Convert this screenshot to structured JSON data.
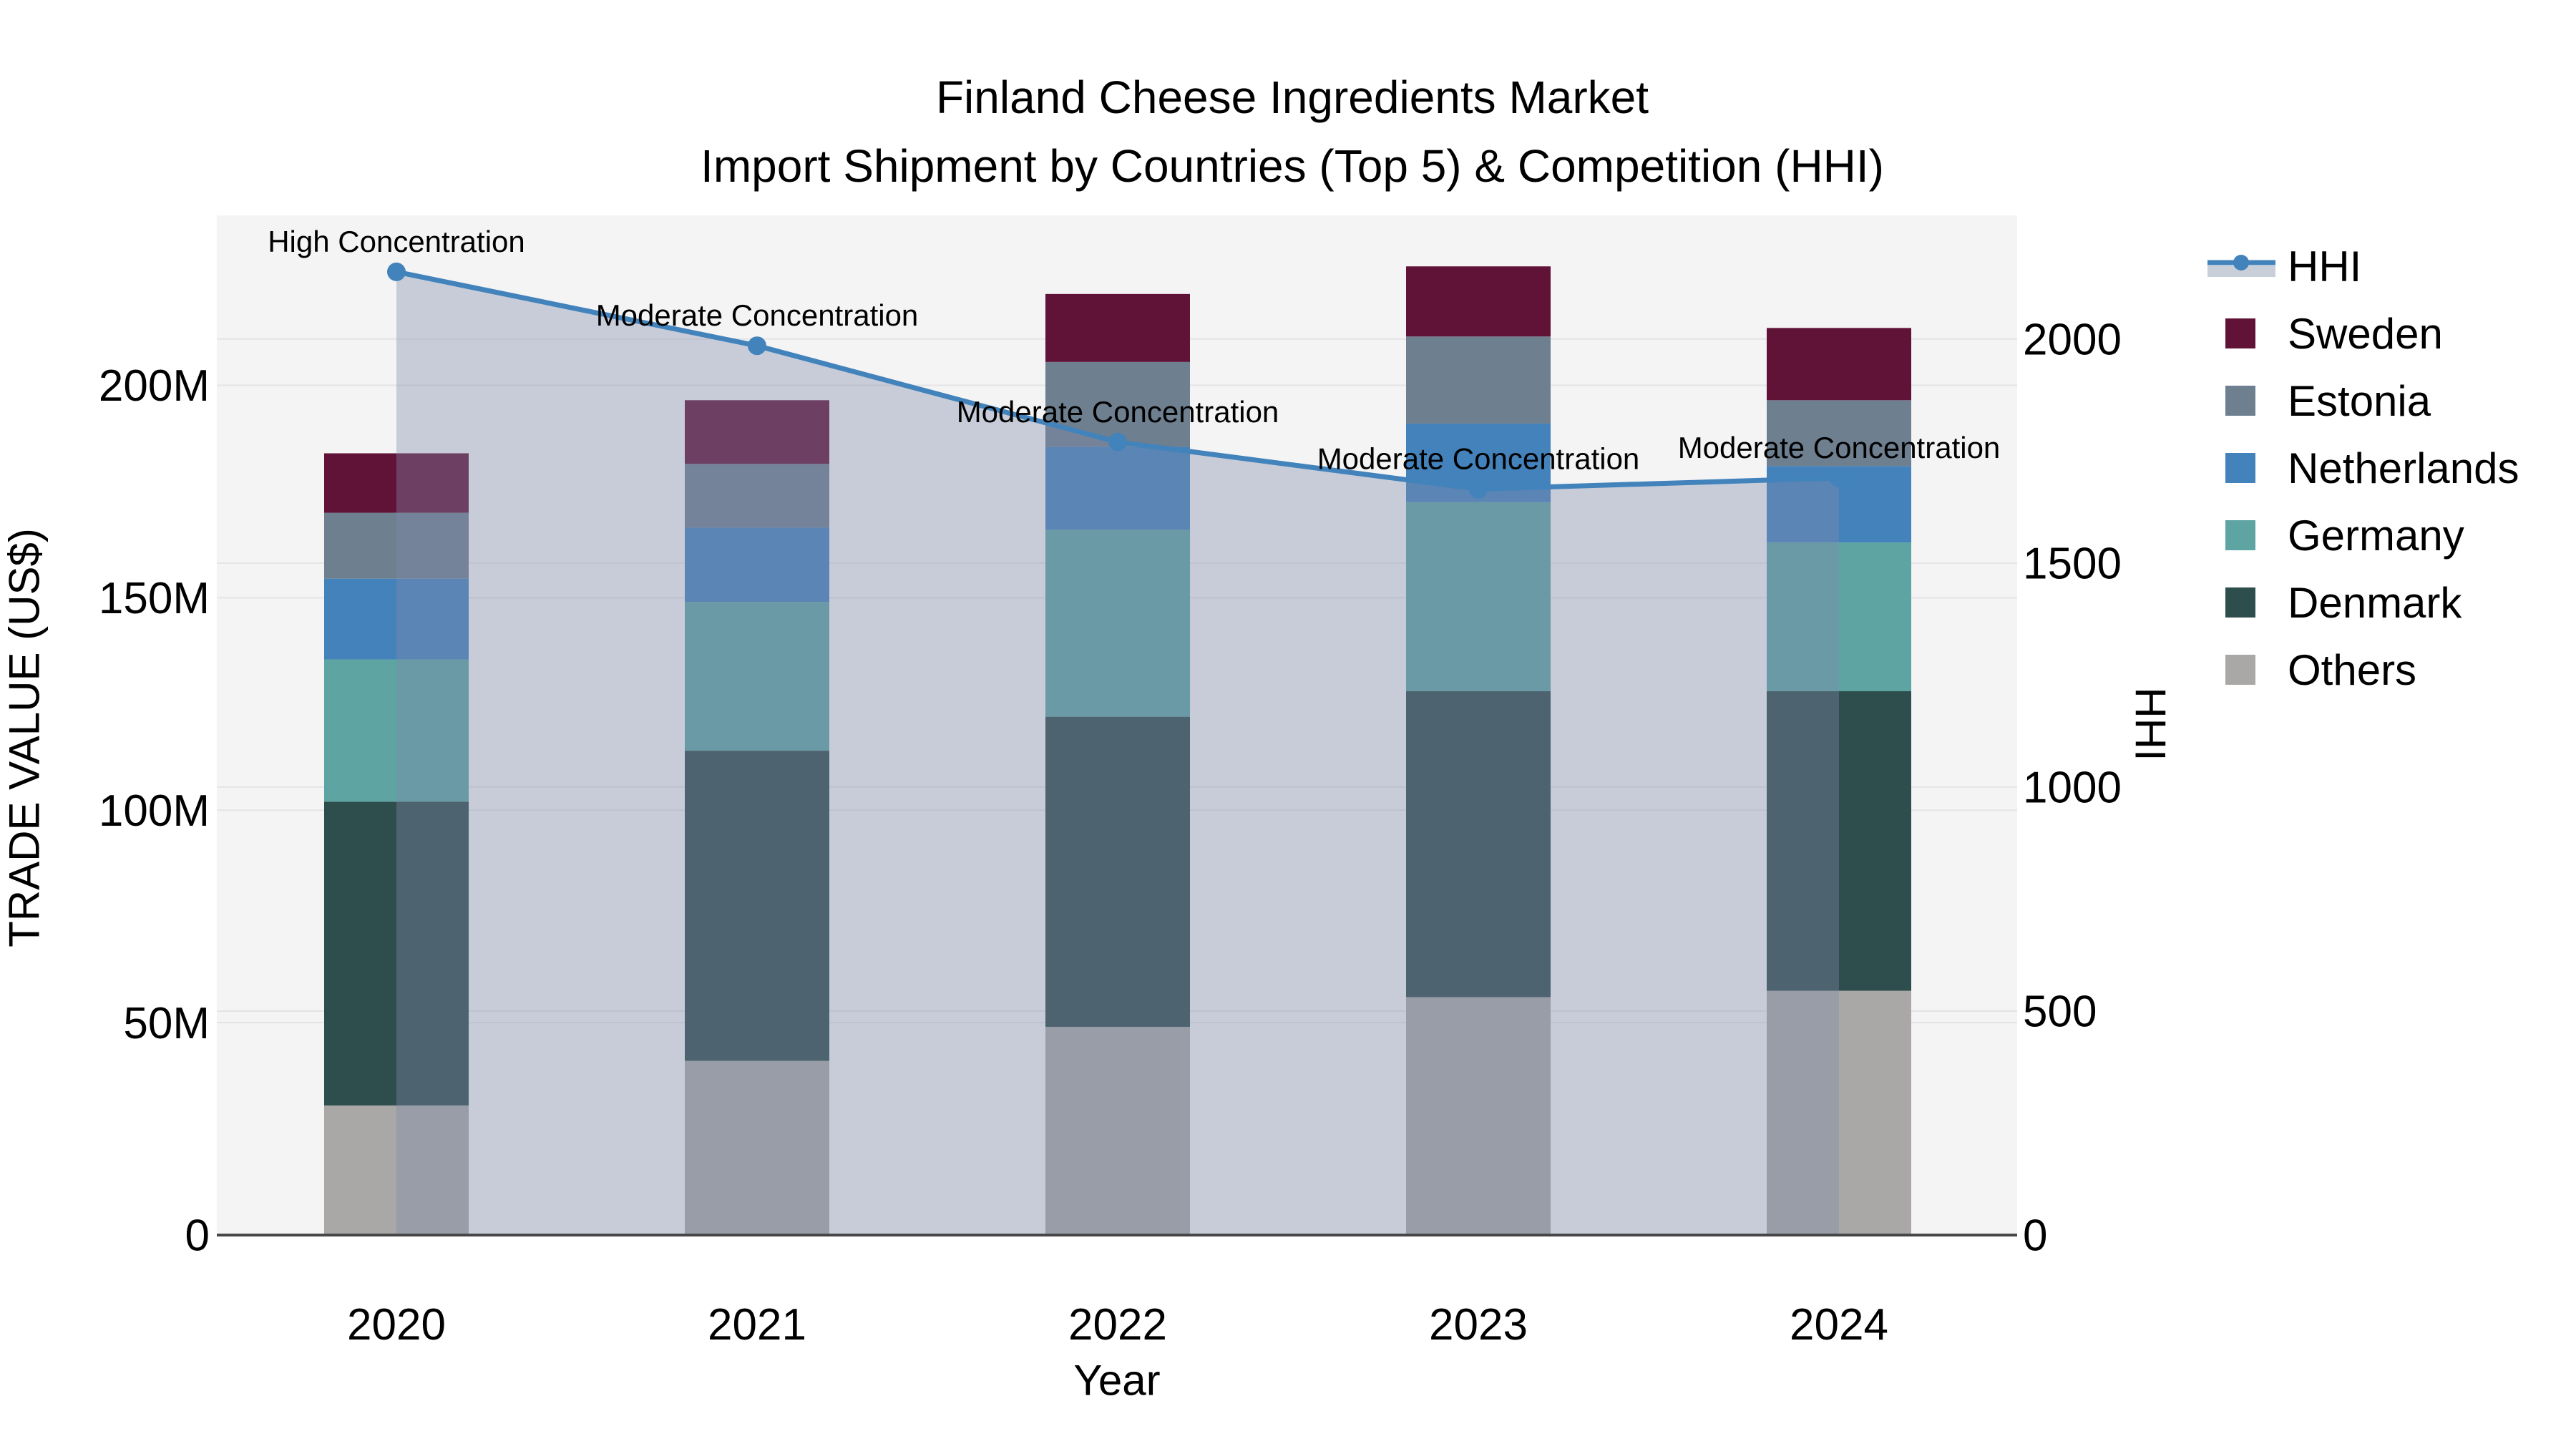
{
  "title": {
    "line1": "Finland Cheese Ingredients Market",
    "line2": "Import Shipment by Countries (Top 5) & Competition (HHI)"
  },
  "axes": {
    "x_title": "Year",
    "y_title": "TRADE VALUE (US$)",
    "y2_title": "HHI",
    "x_ticks": [
      "2020",
      "2021",
      "2022",
      "2023",
      "2024"
    ],
    "y_ticks": [
      {
        "value": 0,
        "label": "0"
      },
      {
        "value": 50,
        "label": "50M"
      },
      {
        "value": 100,
        "label": "100M"
      },
      {
        "value": 150,
        "label": "150M"
      },
      {
        "value": 200,
        "label": "200M"
      }
    ],
    "y2_ticks": [
      {
        "value": 0,
        "label": "0"
      },
      {
        "value": 500,
        "label": "500"
      },
      {
        "value": 1000,
        "label": "1000"
      },
      {
        "value": 1500,
        "label": "1500"
      },
      {
        "value": 2000,
        "label": "2000"
      }
    ],
    "y_max": 240,
    "y2_max": 2276
  },
  "chart_data": {
    "type": "combo-stacked-bar-with-line",
    "title": "Finland Cheese Ingredients Market — Import Shipment by Countries (Top 5) & Competition (HHI)",
    "xlabel": "Year",
    "ylabel": "TRADE VALUE (US$)",
    "y2label": "HHI",
    "categories": [
      "2020",
      "2021",
      "2022",
      "2023",
      "2024"
    ],
    "bar_unit": "US$ millions (estimated from axis)",
    "ylim": [
      0,
      240
    ],
    "y2lim": [
      0,
      2276
    ],
    "grid": true,
    "legend_position": "right",
    "series": [
      {
        "name": "Others",
        "color": "#a9a8a6",
        "values": [
          30.5,
          41.0,
          49.0,
          56.0,
          57.5
        ]
      },
      {
        "name": "Denmark",
        "color": "#2e4d4d",
        "values": [
          71.5,
          73.0,
          73.0,
          72.0,
          70.5
        ]
      },
      {
        "name": "Germany",
        "color": "#5da4a3",
        "values": [
          33.5,
          35.0,
          44.0,
          44.5,
          35.0
        ]
      },
      {
        "name": "Netherlands",
        "color": "#4382ba",
        "values": [
          19.0,
          17.5,
          19.5,
          18.5,
          18.0
        ]
      },
      {
        "name": "Estonia",
        "color": "#6e7f90",
        "values": [
          15.5,
          15.0,
          20.0,
          20.5,
          15.5
        ]
      },
      {
        "name": "Sweden",
        "color": "#611337",
        "values": [
          14.0,
          15.0,
          16.0,
          16.5,
          17.0
        ]
      }
    ],
    "line_series": {
      "name": "HHI",
      "color": "#4383bb",
      "area_fill": "rgba(130,140,170,0.38)",
      "values": [
        2150,
        1985,
        1770,
        1665,
        1690
      ]
    },
    "annotations": [
      {
        "x": "2020",
        "text": "High Concentration"
      },
      {
        "x": "2021",
        "text": "Moderate Concentration"
      },
      {
        "x": "2022",
        "text": "Moderate Concentration"
      },
      {
        "x": "2023",
        "text": "Moderate Concentration"
      },
      {
        "x": "2024",
        "text": "Moderate Concentration"
      }
    ]
  },
  "legend": {
    "items": [
      {
        "label": "HHI",
        "type": "line",
        "color": "#4383bb",
        "band": "#c9cfd9"
      },
      {
        "label": "Sweden",
        "type": "swatch",
        "color": "#611337"
      },
      {
        "label": "Estonia",
        "type": "swatch",
        "color": "#6e7f90"
      },
      {
        "label": "Netherlands",
        "type": "swatch",
        "color": "#4382ba"
      },
      {
        "label": "Germany",
        "type": "swatch",
        "color": "#5da4a3"
      },
      {
        "label": "Denmark",
        "type": "swatch",
        "color": "#2e4d4d"
      },
      {
        "label": "Others",
        "type": "swatch",
        "color": "#a9a8a6"
      }
    ]
  },
  "colors": {
    "plot_bg": "#f4f4f5",
    "grid": "#e4e4e6",
    "axis_line": "#474747",
    "text": "#000000"
  }
}
